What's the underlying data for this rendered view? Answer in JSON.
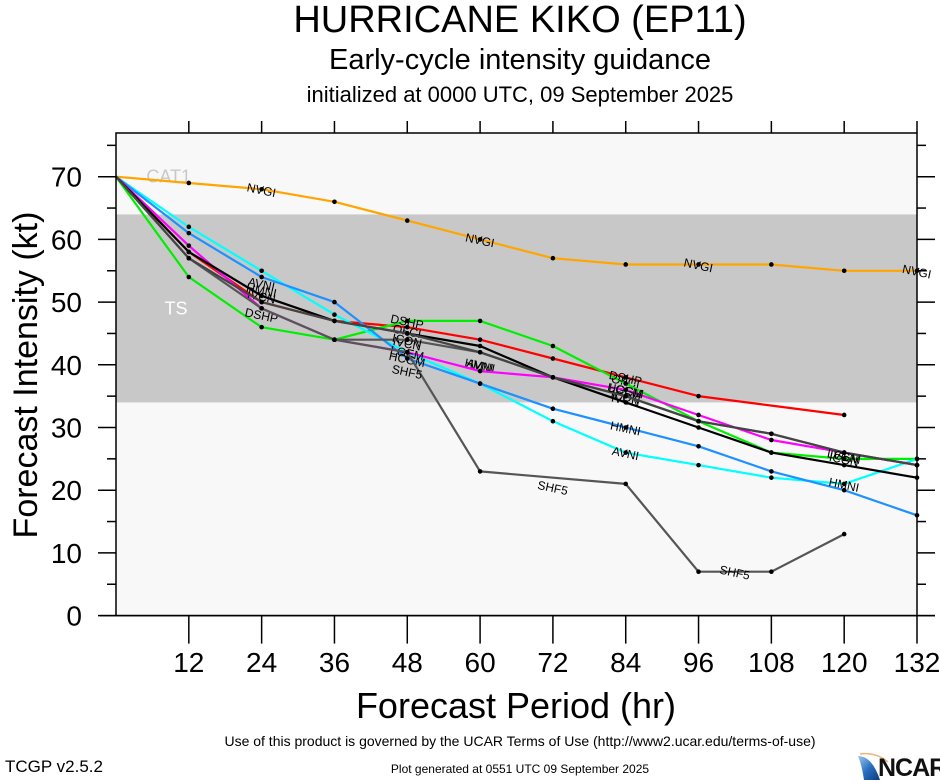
{
  "header": {
    "title": "HURRICANE KIKO (EP11)",
    "subtitle": "Early-cycle intensity guidance",
    "init_line": "initialized at 0000 UTC, 09 September 2025"
  },
  "footer": {
    "terms": "Use of this product is governed by the UCAR Terms of Use (http://www2.ucar.edu/terms-of-use)",
    "version": "TCGP v2.5.2",
    "generated": "Plot generated at 0551 UTC   09 September 2025",
    "logo": "NCAR"
  },
  "chart_data": {
    "type": "line",
    "title": "HURRICANE KIKO (EP11)",
    "xlabel": "Forecast Period (hr)",
    "ylabel": "Forecast Intensity (kt)",
    "xlim": [
      0,
      132
    ],
    "ylim": [
      0,
      75
    ],
    "xticks": [
      12,
      24,
      36,
      48,
      60,
      72,
      84,
      96,
      108,
      120,
      132
    ],
    "yticks": [
      0,
      10,
      20,
      30,
      40,
      50,
      60,
      70
    ],
    "grid": false,
    "bands": [
      {
        "name": "TS",
        "from": 34,
        "to": 64,
        "color": "#c8c8c8"
      },
      {
        "name": "CAT1",
        "from": 64,
        "to": 75,
        "color": "#f8f8f8"
      }
    ],
    "band_labels": [
      {
        "text": "CAT1",
        "x": 5,
        "y": 70,
        "color": "#c8c8c8"
      },
      {
        "text": "TS",
        "x": 8,
        "y": 49,
        "color": "#ffffff"
      }
    ],
    "series": [
      {
        "name": "NVGI",
        "color": "#ffa500",
        "x": [
          0,
          12,
          24,
          36,
          48,
          60,
          72,
          84,
          96,
          108,
          120,
          132
        ],
        "values": [
          70,
          69,
          68,
          66,
          63,
          60,
          57,
          56,
          56,
          56,
          55,
          55
        ],
        "labels_at": [
          [
            24,
            68
          ],
          [
            60,
            60
          ],
          [
            96,
            56
          ],
          [
            132,
            55
          ]
        ]
      },
      {
        "name": "OFCI",
        "color": "#ff0000",
        "x": [
          0,
          12,
          24,
          36,
          48,
          60,
          72,
          84,
          96,
          120
        ],
        "values": [
          70,
          58,
          50,
          47,
          46,
          44,
          41,
          38,
          35,
          32
        ],
        "labels_at": [
          [
            48,
            45.5
          ],
          [
            84,
            37.5
          ]
        ]
      },
      {
        "name": "DSHP",
        "color": "#00ee00",
        "x": [
          0,
          12,
          24,
          36,
          48,
          60,
          72,
          84,
          96,
          108,
          120,
          132
        ],
        "values": [
          70,
          54,
          46,
          44,
          47,
          47,
          43,
          37,
          31,
          26,
          25,
          25
        ],
        "labels_at": [
          [
            24,
            48
          ],
          [
            48,
            47
          ],
          [
            84,
            38
          ]
        ]
      },
      {
        "name": "AVNI",
        "color": "#00ffff",
        "x": [
          0,
          12,
          24,
          36,
          48,
          60,
          72,
          84,
          96,
          108,
          120,
          132
        ],
        "values": [
          70,
          62,
          55,
          48,
          42,
          37,
          31,
          26,
          24,
          22,
          21,
          25
        ],
        "labels_at": [
          [
            24,
            53
          ],
          [
            84,
            26
          ],
          [
            60,
            40
          ]
        ]
      },
      {
        "name": "HMNI",
        "color": "#1e90ff",
        "x": [
          0,
          12,
          24,
          36,
          48,
          60,
          72,
          84,
          96,
          108,
          120,
          132
        ],
        "values": [
          70,
          61,
          54,
          50,
          41,
          37,
          33,
          30,
          27,
          23,
          20,
          16
        ],
        "labels_at": [
          [
            24,
            52
          ],
          [
            84,
            30
          ],
          [
            60,
            40
          ],
          [
            120,
            21
          ]
        ]
      },
      {
        "name": "HCGM",
        "color": "#ff00ff",
        "x": [
          0,
          12,
          24,
          36,
          48,
          60,
          72,
          84,
          96,
          108,
          120,
          132
        ],
        "values": [
          70,
          59,
          49,
          44,
          42,
          39,
          38,
          36,
          32,
          28,
          26,
          24
        ],
        "labels_at": [
          [
            48,
            41
          ],
          [
            84,
            36
          ]
        ]
      },
      {
        "name": "IVCN",
        "color": "#000000",
        "x": [
          0,
          12,
          24,
          36,
          48,
          60,
          72,
          84,
          96,
          108,
          120,
          132
        ],
        "values": [
          70,
          58,
          51,
          47,
          45,
          43,
          38,
          34,
          30,
          26,
          24,
          22
        ],
        "labels_at": [
          [
            24,
            51
          ],
          [
            48,
            43.5
          ],
          [
            84,
            34.5
          ],
          [
            120,
            25.5
          ]
        ]
      },
      {
        "name": "ICON",
        "color": "#555555",
        "x": [
          0,
          12,
          24,
          36,
          48,
          60,
          72,
          84,
          96,
          108,
          120,
          132
        ],
        "values": [
          70,
          57,
          49,
          44,
          44,
          42,
          38,
          35,
          31,
          29,
          26,
          24
        ],
        "labels_at": [
          [
            48,
            44
          ],
          [
            84,
            35
          ],
          [
            120,
            25
          ]
        ]
      },
      {
        "name": "LGEM",
        "color": "#444444",
        "x": [
          0,
          12,
          24,
          36,
          48,
          60,
          72,
          84,
          96,
          108,
          120,
          132
        ],
        "values": [
          70,
          57,
          50,
          47,
          45,
          42,
          38,
          35,
          31,
          29,
          26,
          24
        ],
        "labels_at": [
          [
            48,
            42
          ],
          [
            84,
            36
          ],
          [
            120,
            25.5
          ]
        ]
      },
      {
        "name": "SHF5",
        "color": "#555555",
        "x": [
          36,
          48,
          60,
          84,
          96,
          108,
          120
        ],
        "values": [
          44,
          42,
          23,
          21,
          7,
          7,
          13
        ],
        "labels_at": [
          [
            48,
            39
          ],
          [
            72,
            20.5
          ],
          [
            102,
            7
          ]
        ]
      }
    ]
  }
}
